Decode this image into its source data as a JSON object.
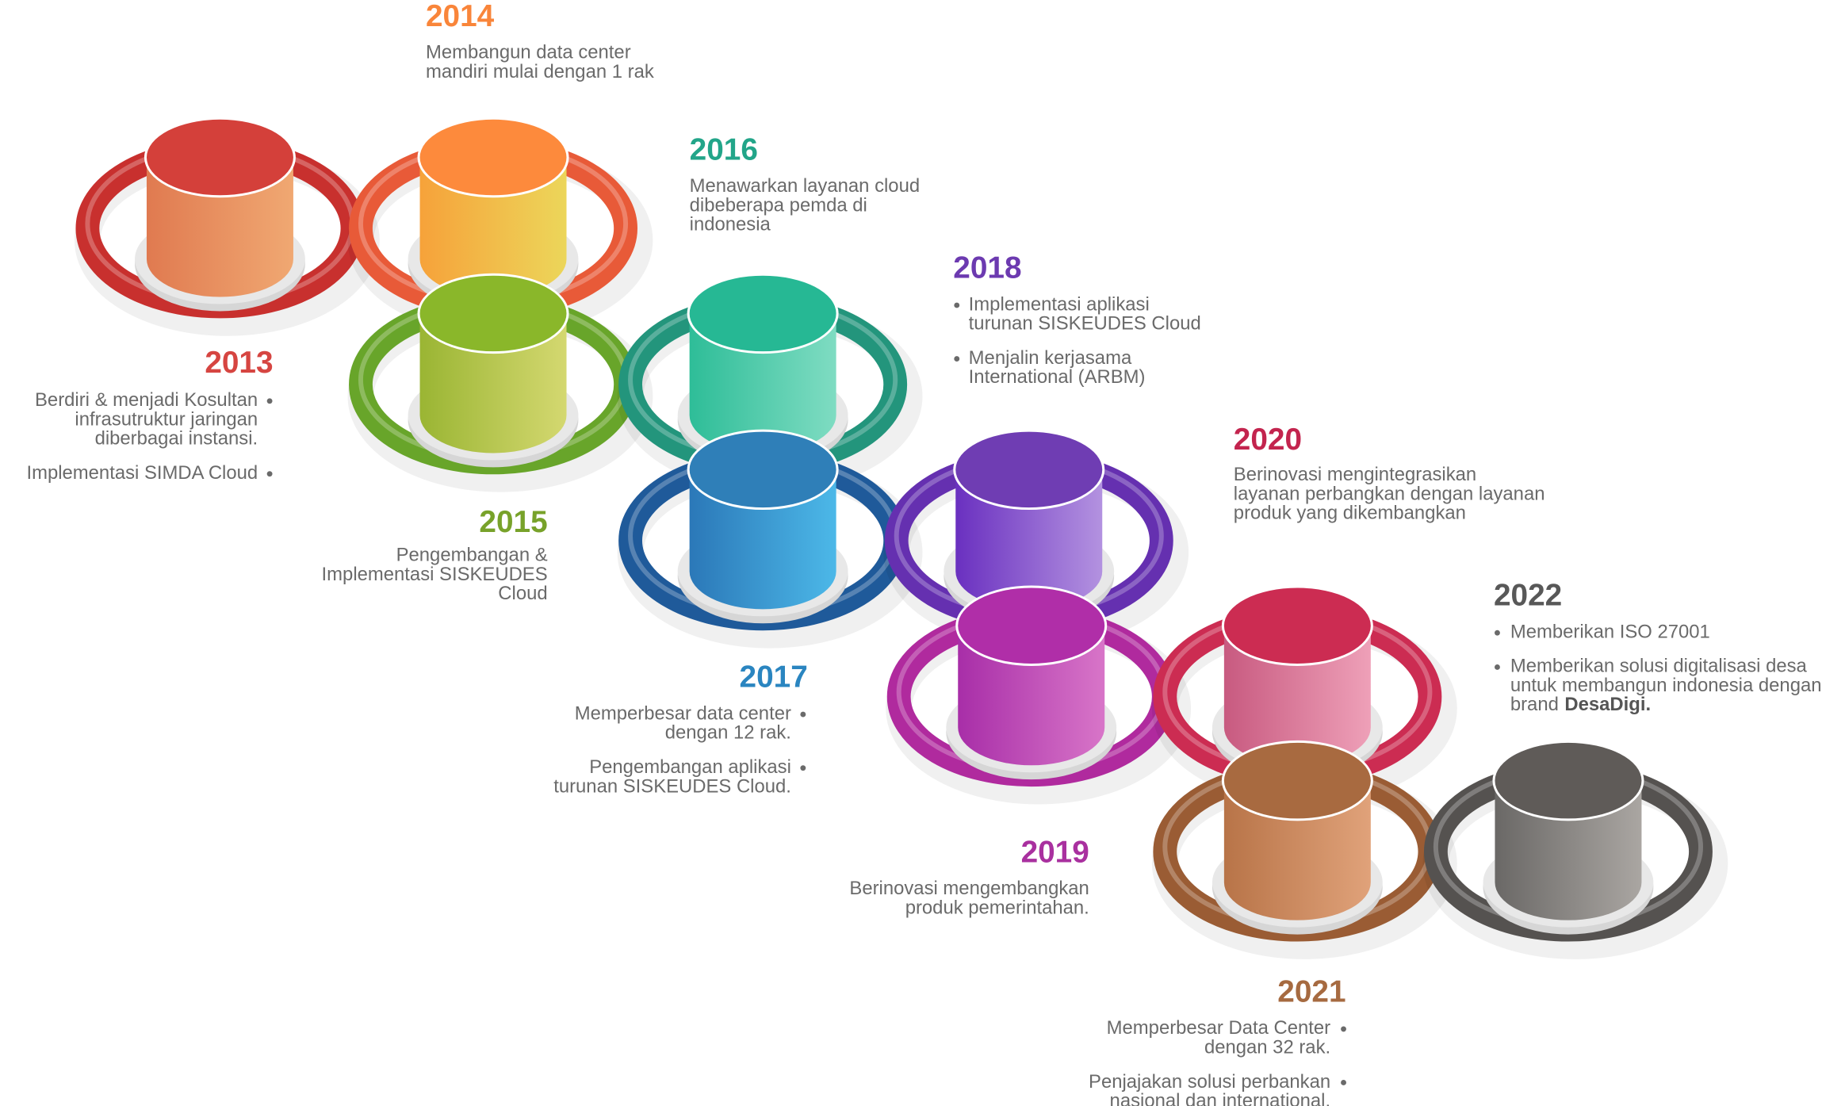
{
  "milestones": [
    {
      "year": "2013",
      "items": [
        [
          "Berdiri & menjadi Kosultan",
          "infrasutruktur jaringan",
          "diberbagai instansi."
        ],
        [
          "Implementasi SIMDA Cloud"
        ]
      ]
    },
    {
      "year": "2014",
      "items": [
        [
          "Membangun data center",
          "mandiri mulai dengan 1 rak"
        ]
      ]
    },
    {
      "year": "2015",
      "items": [
        [
          "Pengembangan &",
          "Implementasi SISKEUDES",
          "Cloud"
        ]
      ]
    },
    {
      "year": "2016",
      "items": [
        [
          "Menawarkan layanan cloud",
          "dibeberapa pemda di",
          "indonesia"
        ]
      ]
    },
    {
      "year": "2017",
      "items": [
        [
          "Memperbesar data center",
          "dengan 12 rak."
        ],
        [
          "Pengembangan aplikasi",
          "turunan SISKEUDES Cloud."
        ]
      ]
    },
    {
      "year": "2018",
      "items": [
        [
          "Implementasi aplikasi",
          "turunan SISKEUDES Cloud"
        ],
        [
          "Menjalin kerjasama",
          "International (ARBM)"
        ]
      ]
    },
    {
      "year": "2019",
      "items": [
        [
          "Berinovasi mengembangkan",
          "produk pemerintahan."
        ]
      ]
    },
    {
      "year": "2020",
      "items": [
        [
          "Berinovasi mengintegrasikan",
          "layanan perbangkan dengan layanan",
          "produk yang dikembangkan"
        ]
      ]
    },
    {
      "year": "2021",
      "items": [
        [
          "Memperbesar Data Center",
          "dengan 32 rak."
        ],
        [
          "Penjajakan solusi perbankan",
          "nasional dan international."
        ]
      ]
    },
    {
      "year": "2022",
      "items": [
        [
          "Memberikan ISO 27001"
        ],
        [
          "Memberikan solusi digitalisasi desa",
          "untuk membangun indonesia dengan",
          {
            "text": "brand",
            "bold": "DesaDigi."
          }
        ]
      ]
    }
  ]
}
